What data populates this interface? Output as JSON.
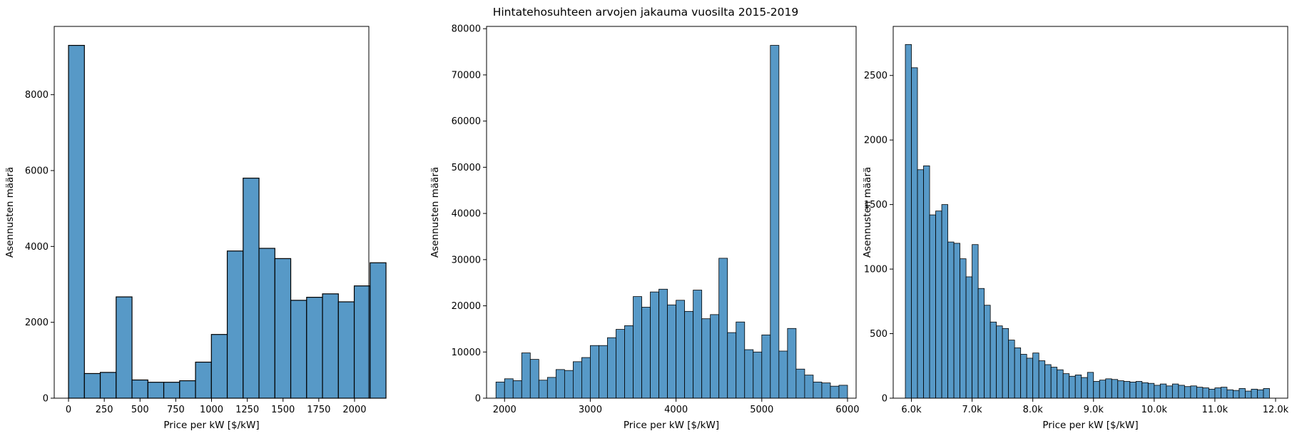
{
  "title": "Hintatehosuhteen arvojen jakauma vuosilta 2015-2019",
  "colors": {
    "bar_fill": "#5799c7",
    "bar_edge": "#000000",
    "axis": "#000000"
  },
  "chart_data": [
    {
      "type": "bar",
      "xlabel": "Price per kW [$/kW]",
      "ylabel": "Asennusten määrä",
      "xlim": [
        -100,
        2100
      ],
      "ylim": [
        0,
        9800
      ],
      "xticks": [
        0,
        250,
        500,
        750,
        1000,
        1250,
        1500,
        1750,
        2000
      ],
      "xtick_labels": [
        "0",
        "250",
        "500",
        "750",
        "1000",
        "1250",
        "1500",
        "1750",
        "2000"
      ],
      "yticks": [
        0,
        2000,
        4000,
        6000,
        8000
      ],
      "ytick_labels": [
        "0",
        "2000",
        "4000",
        "6000",
        "8000"
      ],
      "bin_start": 0,
      "bin_width": 111,
      "values": [
        9300,
        650,
        680,
        2670,
        480,
        420,
        420,
        460,
        950,
        1680,
        3880,
        5800,
        3950,
        3680,
        2580,
        2660,
        2750,
        2540,
        2960,
        3570
      ]
    },
    {
      "type": "bar",
      "xlabel": "Price per kW [$/kW]",
      "ylabel": "Asennusten määrä",
      "xlim": [
        1790,
        6100
      ],
      "ylim": [
        0,
        80500
      ],
      "xticks": [
        2000,
        3000,
        4000,
        5000,
        6000
      ],
      "xtick_labels": [
        "2000",
        "3000",
        "4000",
        "5000",
        "6000"
      ],
      "yticks": [
        0,
        10000,
        20000,
        30000,
        40000,
        50000,
        60000,
        70000,
        80000
      ],
      "ytick_labels": [
        "0",
        "10000",
        "20000",
        "30000",
        "40000",
        "50000",
        "60000",
        "70000",
        "80000"
      ],
      "bin_start": 1900,
      "bin_width": 100,
      "values": [
        3500,
        4200,
        3800,
        9800,
        8400,
        3900,
        4500,
        6200,
        6000,
        7900,
        8800,
        11400,
        11400,
        13100,
        14900,
        15700,
        22000,
        19700,
        23000,
        23600,
        20200,
        21200,
        18800,
        23400,
        17200,
        18100,
        30300,
        14200,
        16500,
        10500,
        10000,
        13700,
        76400,
        10200,
        15100,
        6300,
        5000,
        3500,
        3300,
        2600,
        2800
      ]
    },
    {
      "type": "bar",
      "xlabel": "Price per kW [$/kW]",
      "ylabel": "Asennusten määrä",
      "xlim": [
        5700,
        12200
      ],
      "ylim": [
        0,
        2880
      ],
      "xticks": [
        6000,
        7000,
        8000,
        9000,
        10000,
        11000,
        12000
      ],
      "xtick_labels": [
        "6.0k",
        "7.0k",
        "8.0k",
        "9.0k",
        "10.0k",
        "11.0k",
        "12.0k"
      ],
      "yticks": [
        0,
        500,
        1000,
        1500,
        2000,
        2500
      ],
      "ytick_labels": [
        "0",
        "500",
        "1000",
        "1500",
        "2000",
        "2500"
      ],
      "bin_start": 5900,
      "bin_width": 100,
      "values": [
        2740,
        2560,
        1770,
        1800,
        1420,
        1450,
        1500,
        1210,
        1200,
        1080,
        940,
        1190,
        850,
        720,
        590,
        560,
        540,
        450,
        390,
        340,
        310,
        350,
        290,
        260,
        240,
        220,
        190,
        170,
        180,
        160,
        200,
        130,
        140,
        150,
        145,
        135,
        130,
        125,
        130,
        120,
        115,
        100,
        110,
        95,
        110,
        100,
        90,
        95,
        85,
        80,
        70,
        80,
        85,
        65,
        60,
        75,
        55,
        70,
        65,
        75
      ]
    }
  ]
}
